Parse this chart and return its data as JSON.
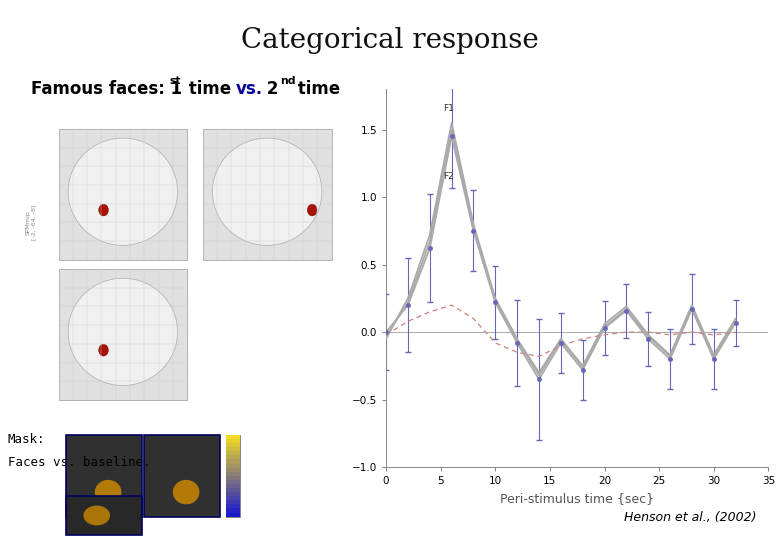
{
  "title": "Categorical response",
  "title_bg_color": "#00C9A7",
  "background_color": "#ffffff",
  "x_data": [
    0,
    2,
    4,
    6,
    8,
    10,
    12,
    14,
    16,
    18,
    20,
    22,
    24,
    26,
    28,
    30,
    32
  ],
  "line1_y": [
    0.0,
    0.2,
    0.62,
    1.45,
    0.75,
    0.22,
    -0.08,
    -0.35,
    -0.08,
    -0.28,
    0.03,
    0.16,
    -0.05,
    -0.2,
    0.17,
    -0.2,
    0.07
  ],
  "line2_y": [
    -0.05,
    0.25,
    0.72,
    1.55,
    0.8,
    0.25,
    -0.05,
    -0.3,
    -0.05,
    -0.25,
    0.06,
    0.19,
    -0.02,
    -0.17,
    0.2,
    -0.17,
    0.1
  ],
  "line3_y": [
    -0.03,
    0.22,
    0.67,
    1.5,
    0.77,
    0.23,
    -0.06,
    -0.32,
    -0.06,
    -0.26,
    0.04,
    0.17,
    -0.03,
    -0.18,
    0.18,
    -0.18,
    0.08
  ],
  "dashed_y": [
    -0.02,
    0.08,
    0.15,
    0.2,
    0.1,
    -0.08,
    -0.15,
    -0.18,
    -0.1,
    -0.05,
    -0.02,
    0.0,
    0.0,
    -0.02,
    0.0,
    -0.02,
    0.0
  ],
  "error_y": [
    0.28,
    0.35,
    0.4,
    0.38,
    0.3,
    0.27,
    0.32,
    0.45,
    0.22,
    0.22,
    0.2,
    0.2,
    0.2,
    0.22,
    0.26,
    0.22,
    0.17
  ],
  "ylim": [
    -1.0,
    1.8
  ],
  "xlim": [
    0,
    35
  ],
  "xticks": [
    0,
    5,
    10,
    15,
    20,
    25,
    30,
    35
  ],
  "yticks": [
    -1.0,
    -0.5,
    0,
    0.5,
    1.0,
    1.5
  ],
  "line_color": "#AAAAAA",
  "dashed_color": "#D08080",
  "error_color": "#6666BB",
  "label_F1": "F1",
  "label_F2": "F2",
  "xlabel": "Peri-stimulus time {sec}",
  "henson_text": "Henson et al., (2002)",
  "mask_text1": "Mask:",
  "mask_text2": "Faces vs. baseline.",
  "spm_label": "SPMmip\n[-2, -64, -8]",
  "brain_bg": "#E0E0E0",
  "brain_oval_color": "#F0F0F0",
  "brain_grid_color": "#CCCCCC",
  "dot_color": "#AA1100",
  "title_fontsize": 20,
  "subtitle_fontsize": 12
}
